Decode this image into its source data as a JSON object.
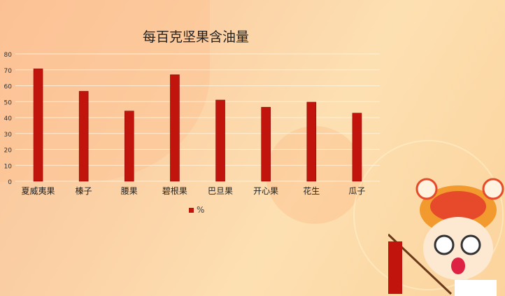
{
  "chart_data": {
    "type": "bar",
    "title": "每百克坚果含油量",
    "categories": [
      "夏威夷果",
      "榛子",
      "腰果",
      "碧根果",
      "巴旦果",
      "开心果",
      "花生",
      "瓜子"
    ],
    "series": [
      {
        "name": "%",
        "values": [
          70.6,
          56.5,
          44.1,
          66.9,
          51.0,
          46.5,
          49.7,
          42.8
        ],
        "color": "#c0140c"
      }
    ],
    "yticks": [
      0,
      10,
      20,
      30,
      40,
      50,
      60,
      70,
      80
    ],
    "ylim": [
      0,
      80
    ],
    "grid": true,
    "legend": "bottom"
  }
}
